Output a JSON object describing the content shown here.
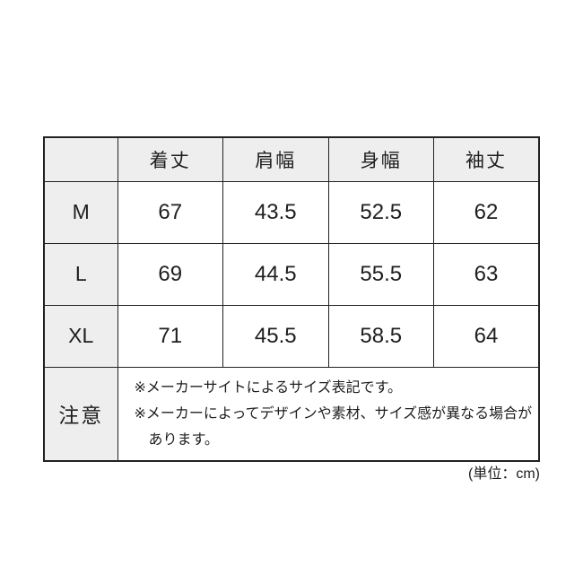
{
  "page": {
    "background": "#ffffff",
    "unit_note": "(単位：cm)"
  },
  "size_chart": {
    "columns": [
      "着丈",
      "肩幅",
      "身幅",
      "袖丈"
    ],
    "rows": [
      {
        "label": "M",
        "values": [
          "67",
          "43.5",
          "52.5",
          "62"
        ]
      },
      {
        "label": "L",
        "values": [
          "69",
          "44.5",
          "55.5",
          "63"
        ]
      },
      {
        "label": "XL",
        "values": [
          "71",
          "45.5",
          "58.5",
          "64"
        ]
      }
    ],
    "note_label": "注意",
    "notes": [
      "※メーカーサイトによるサイズ表記です。",
      "※メーカーによってデザインや素材、サイズ感が異なる場合があります。"
    ],
    "colors": {
      "label_cell_bg": "#eeeeee",
      "data_cell_bg": "#ffffff",
      "border": "#222222",
      "text": "#1e1e1e"
    }
  },
  "chart_data": {
    "type": "table",
    "title": "",
    "columns": [
      "",
      "着丈",
      "肩幅",
      "身幅",
      "袖丈"
    ],
    "rows": [
      [
        "M",
        67,
        43.5,
        52.5,
        62
      ],
      [
        "L",
        69,
        44.5,
        55.5,
        63
      ],
      [
        "XL",
        71,
        45.5,
        58.5,
        64
      ]
    ],
    "unit": "cm",
    "notes": [
      "※メーカーサイトによるサイズ表記です。",
      "※メーカーによってデザインや素材、サイズ感が異なる場合があります。"
    ]
  }
}
